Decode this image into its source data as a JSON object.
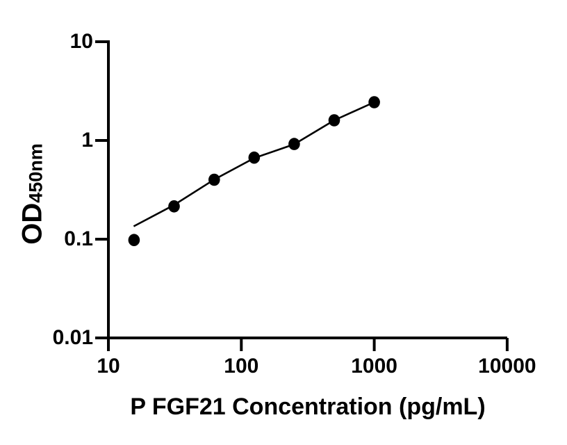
{
  "chart_data": {
    "type": "scatter",
    "title": "",
    "xlabel": "P FGF21 Concentration (pg/mL)",
    "ylabel_main": "OD",
    "ylabel_sub": "450nm",
    "x_scale": "log",
    "y_scale": "log",
    "xlim": [
      10,
      10000
    ],
    "ylim": [
      0.01,
      10
    ],
    "grid": false,
    "legend": "none",
    "marker_color": "#000000",
    "line_color": "#000000",
    "x_ticks": [
      {
        "value": 10,
        "label": "10"
      },
      {
        "value": 100,
        "label": "100"
      },
      {
        "value": 1000,
        "label": "1000"
      },
      {
        "value": 10000,
        "label": "10000"
      }
    ],
    "y_ticks": [
      {
        "value": 10,
        "label": "10"
      },
      {
        "value": 1,
        "label": "1"
      },
      {
        "value": 0.1,
        "label": "0.1"
      },
      {
        "value": 0.01,
        "label": "0.01"
      }
    ],
    "points": [
      {
        "x": 15.6,
        "y": 0.098
      },
      {
        "x": 31.2,
        "y": 0.215
      },
      {
        "x": 62.5,
        "y": 0.4
      },
      {
        "x": 125,
        "y": 0.67
      },
      {
        "x": 250,
        "y": 0.92
      },
      {
        "x": 500,
        "y": 1.6
      },
      {
        "x": 1000,
        "y": 2.44
      }
    ],
    "trend_line": [
      {
        "x": 15.5,
        "y": 0.135
      },
      {
        "x": 31.2,
        "y": 0.222
      },
      {
        "x": 62.5,
        "y": 0.402
      },
      {
        "x": 125,
        "y": 0.662
      },
      {
        "x": 250,
        "y": 0.915
      },
      {
        "x": 500,
        "y": 1.6
      },
      {
        "x": 1000,
        "y": 2.44
      }
    ]
  }
}
